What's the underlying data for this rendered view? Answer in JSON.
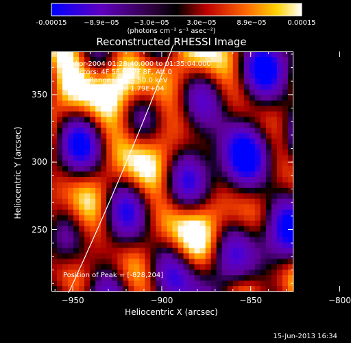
{
  "colorbar": {
    "ticks": [
      "-0.00015",
      "−8.9e−05",
      "−3.0e−05",
      "3.0e−05",
      "8.9e−05",
      "0.00015"
    ],
    "unit_label": "(photons cm⁻² s⁻¹ asec⁻²)"
  },
  "chart_data": {
    "type": "heatmap",
    "title": "Reconstructed RHESSI Image",
    "xlabel": "Heliocentric X (arcsec)",
    "ylabel": "Heliocentric Y (arcsec)",
    "xlim": [
      -962,
      -826
    ],
    "ylim": [
      204,
      382
    ],
    "x_ticks": [
      "−950",
      "−900",
      "−850",
      "−800"
    ],
    "y_ticks": [
      "250",
      "300",
      "350"
    ],
    "value_range": [
      -0.00015,
      0.00015
    ],
    "colormap": [
      "#0000ff",
      "#6f00b0",
      "#000000",
      "#c00000",
      "#ff6a00",
      "#ffd200",
      "#ffffff"
    ],
    "info_lines": [
      "15-Apr-2004 01:28:40.000 to 01:35:04.000",
      "Detectors: 4F 5F 6F 7F 8F, Att 0",
      "Energy Range: 25.0 - 50.0 keV",
      "Clean     Total counts: 1.79E+04"
    ],
    "peak_label": "Position of Peak = [-828,204]",
    "peak_position": [
      -828,
      204
    ]
  },
  "timestamp": "15-Jun-2013 16:34"
}
